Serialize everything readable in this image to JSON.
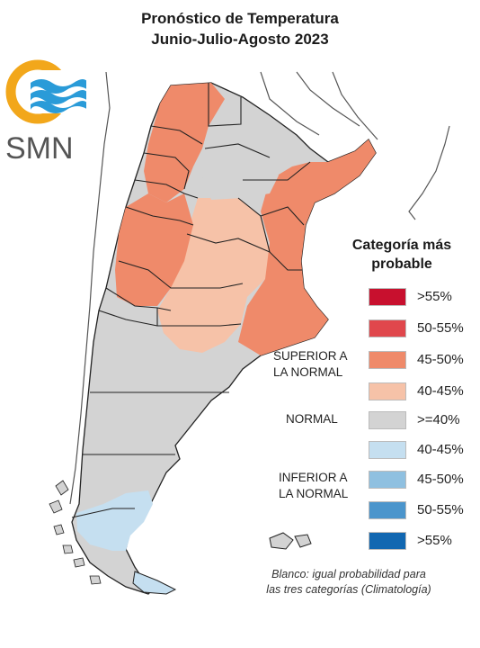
{
  "title_line1": "Pronóstico de Temperatura",
  "title_line2": "Junio-Julio-Agosto 2023",
  "logo": {
    "text": "SMN",
    "ring_color": "#f2a71b",
    "wave_color": "#2a9bd8"
  },
  "legend": {
    "title_line1": "Categoría más",
    "title_line2": "probable",
    "items": [
      {
        "label": ">55%",
        "color": "#c8102e"
      },
      {
        "label": "50-55%",
        "color": "#e0474c"
      },
      {
        "label": "45-50%",
        "color": "#ef8a6a"
      },
      {
        "label": "40-45%",
        "color": "#f6c2a8"
      },
      {
        "label": ">=40%",
        "color": "#d3d3d3"
      },
      {
        "label": "40-45%",
        "color": "#c5dff0"
      },
      {
        "label": "45-50%",
        "color": "#8fc0e0"
      },
      {
        "label": "50-55%",
        "color": "#4b95cc"
      },
      {
        "label": ">55%",
        "color": "#1167b1"
      }
    ],
    "groups": {
      "superior_line1": "SUPERIOR A",
      "superior_line2": "LA NORMAL",
      "normal": "NORMAL",
      "inferior_line1": "INFERIOR A",
      "inferior_line2": "LA NORMAL"
    }
  },
  "note_line1": "Blanco: igual probabilidad para",
  "note_line2": "las tres categorías (Climatología)",
  "map_colors": {
    "warm_strong": "#ef8a6a",
    "warm_mild": "#f6c2a8",
    "normal": "#d3d3d3",
    "cold": "#c5dff0",
    "border": "#222222",
    "neighbor": "#555555"
  }
}
